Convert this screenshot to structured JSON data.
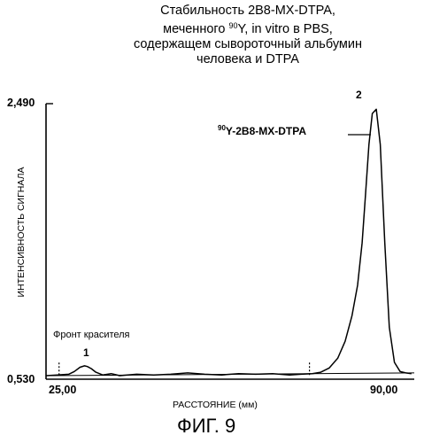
{
  "chart_data": {
    "type": "line",
    "title_lines": [
      "Стабильность 2B8-MX-DTPA,",
      "меченного ",
      "Y, in vitro в PBS,",
      "содержащем сывороточный альбумин",
      "человека и DTPA"
    ],
    "title_superscript": "90",
    "xlabel": "РАССТОЯНИЕ (мм)",
    "ylabel": "ИНТЕНСИВНОСТЬ СИГНАЛА",
    "xlim": [
      25.0,
      90.0
    ],
    "ylim": [
      0.53,
      2.49
    ],
    "x_tick_labels": [
      "25,00",
      "90,00"
    ],
    "y_tick_labels": [
      "2,490",
      "0,530"
    ],
    "series": [
      {
        "x": [
          25.0,
          27.0,
          29.0,
          30.0,
          31.0,
          31.8,
          32.3,
          33.0,
          33.8,
          35.0,
          36.5,
          38.0,
          41.0,
          44.0,
          47.0,
          50.0,
          53.0,
          56.0,
          59.0,
          62.0,
          65.0,
          68.0,
          70.0,
          72.0,
          73.5,
          75.0,
          76.5,
          77.8,
          79.0,
          80.0,
          80.8,
          81.4,
          82.0,
          82.6,
          83.3,
          84.0,
          84.8,
          85.6,
          86.5,
          87.5,
          88.5,
          89.5
        ],
        "y": [
          0.555,
          0.56,
          0.565,
          0.585,
          0.615,
          0.625,
          0.62,
          0.605,
          0.58,
          0.56,
          0.57,
          0.555,
          0.565,
          0.56,
          0.565,
          0.575,
          0.565,
          0.56,
          0.57,
          0.565,
          0.57,
          0.56,
          0.565,
          0.57,
          0.58,
          0.61,
          0.68,
          0.8,
          0.98,
          1.2,
          1.5,
          1.85,
          2.2,
          2.42,
          2.45,
          2.2,
          1.5,
          0.9,
          0.65,
          0.585,
          0.575,
          0.57
        ]
      }
    ],
    "baseline": {
      "x": [
        25.0,
        90.0
      ],
      "y": [
        0.555,
        0.575
      ]
    },
    "range_markers_x": [
      27.3,
      71.5
    ],
    "annotations": {
      "peak1_label": "1",
      "peak2_label": "2",
      "peak1_x": 32.0,
      "peak2_x": 82.8,
      "front_label": "Фронт красителя",
      "peak2_name_sup": "90",
      "peak2_name": "Y-2B8-MX-DTPA"
    }
  },
  "caption": "ФИГ. 9"
}
